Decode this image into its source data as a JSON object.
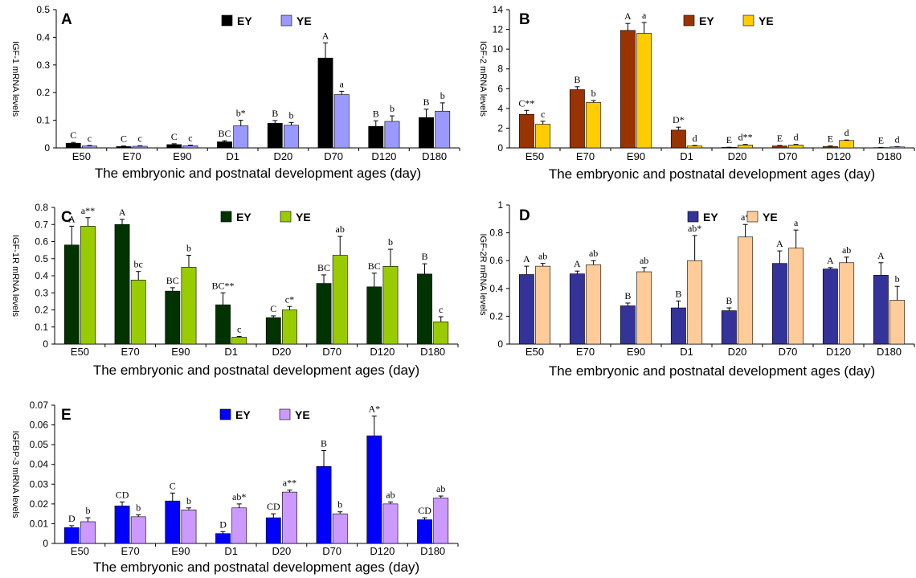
{
  "chart_data": [
    {
      "type": "bar",
      "panel": "A",
      "ylabel": "IGF-1 mRNA levels",
      "xlabel": "The embryonic and postnatal development ages (day)",
      "categories": [
        "E50",
        "E70",
        "E90",
        "D1",
        "D20",
        "D70",
        "D120",
        "D180"
      ],
      "ylim": [
        0,
        0.5
      ],
      "yticks": [
        "0",
        "0.1",
        "0.2",
        "0.3",
        "0.4",
        "0.5"
      ],
      "series": [
        {
          "name": "EY",
          "color": "#000000",
          "values": [
            0.017,
            0.005,
            0.012,
            0.022,
            0.089,
            0.325,
            0.078,
            0.11
          ],
          "errors": [
            0.003,
            0.002,
            0.003,
            0.004,
            0.01,
            0.055,
            0.02,
            0.03
          ],
          "labels": [
            "C",
            "C",
            "C",
            "BC",
            "B",
            "A",
            "B",
            "B"
          ]
        },
        {
          "name": "YE",
          "color": "#9999ff",
          "values": [
            0.007,
            0.006,
            0.008,
            0.08,
            0.082,
            0.193,
            0.096,
            0.133
          ],
          "errors": [
            0.002,
            0.002,
            0.002,
            0.02,
            0.01,
            0.012,
            0.02,
            0.03
          ],
          "labels": [
            "c",
            "c",
            "c",
            "b*",
            "b",
            "a",
            "b",
            "b"
          ]
        }
      ]
    },
    {
      "type": "bar",
      "panel": "B",
      "ylabel": "IGF-2 mRNA levels",
      "xlabel": "The embryonic and postnatal development ages (day)",
      "categories": [
        "E50",
        "E70",
        "E90",
        "D1",
        "D20",
        "D70",
        "D120",
        "D180"
      ],
      "ylim": [
        0,
        14
      ],
      "yticks": [
        "0",
        "2",
        "4",
        "6",
        "8",
        "10",
        "12",
        "14"
      ],
      "series": [
        {
          "name": "EY",
          "color": "#993300",
          "values": [
            3.4,
            5.9,
            11.9,
            1.8,
            0.05,
            0.2,
            0.15,
            0.03
          ],
          "errors": [
            0.4,
            0.3,
            0.7,
            0.3,
            0.02,
            0.05,
            0.05,
            0.02
          ],
          "labels": [
            "C**",
            "B",
            "A",
            "D*",
            "E",
            "E",
            "E",
            "E"
          ]
        },
        {
          "name": "YE",
          "color": "#ffcc00",
          "values": [
            2.4,
            4.6,
            11.6,
            0.2,
            0.3,
            0.3,
            0.75,
            0.1
          ],
          "errors": [
            0.3,
            0.2,
            1.1,
            0.05,
            0.05,
            0.05,
            0.05,
            0.02
          ],
          "labels": [
            "c",
            "b",
            "a",
            "d",
            "d**",
            "d",
            "d",
            "d"
          ]
        }
      ]
    },
    {
      "type": "bar",
      "panel": "C",
      "ylabel": "IGF-1R mRNA levels",
      "xlabel": "The embryonic and postnatal development ages (day)",
      "categories": [
        "E50",
        "E70",
        "E90",
        "D1",
        "D20",
        "D70",
        "D120",
        "D180"
      ],
      "ylim": [
        0,
        0.8
      ],
      "yticks": [
        "0",
        "0.1",
        "0.2",
        "0.3",
        "0.4",
        "0.5",
        "0.6",
        "0.7",
        "0.8"
      ],
      "series": [
        {
          "name": "EY",
          "color": "#003300",
          "values": [
            0.58,
            0.7,
            0.31,
            0.23,
            0.155,
            0.355,
            0.335,
            0.41
          ],
          "errors": [
            0.11,
            0.03,
            0.02,
            0.07,
            0.01,
            0.05,
            0.08,
            0.06
          ],
          "labels": [
            "A",
            "A",
            "BC",
            "BC**",
            "C",
            "BC",
            "BC",
            "B"
          ]
        },
        {
          "name": "YE",
          "color": "#99cc00",
          "values": [
            0.69,
            0.375,
            0.45,
            0.04,
            0.2,
            0.52,
            0.455,
            0.13
          ],
          "errors": [
            0.05,
            0.05,
            0.07,
            0.005,
            0.02,
            0.11,
            0.1,
            0.03
          ],
          "labels": [
            "a**",
            "bc",
            "b",
            "c",
            "c*",
            "ab",
            "b",
            "c"
          ]
        }
      ]
    },
    {
      "type": "bar",
      "panel": "D",
      "ylabel": "IGF-2R mRNA levels",
      "xlabel": "The embryonic and postnatal development ages (day)",
      "categories": [
        "E50",
        "E70",
        "E90",
        "D1",
        "D20",
        "D70",
        "D120",
        "D180"
      ],
      "ylim": [
        0,
        1
      ],
      "yticks": [
        "0",
        "0.2",
        "0.4",
        "0.6",
        "0.8",
        "1"
      ],
      "series": [
        {
          "name": "EY",
          "color": "#333399",
          "values": [
            0.5,
            0.505,
            0.275,
            0.26,
            0.24,
            0.58,
            0.54,
            0.495
          ],
          "errors": [
            0.06,
            0.02,
            0.02,
            0.05,
            0.02,
            0.09,
            0.01,
            0.09
          ],
          "labels": [
            "A",
            "A",
            "B",
            "B",
            "B",
            "A",
            "A",
            "A"
          ]
        },
        {
          "name": "YE",
          "color": "#ffcc99",
          "values": [
            0.56,
            0.57,
            0.52,
            0.6,
            0.77,
            0.69,
            0.585,
            0.315
          ],
          "errors": [
            0.02,
            0.03,
            0.03,
            0.18,
            0.09,
            0.13,
            0.04,
            0.1
          ],
          "labels": [
            "ab",
            "ab",
            "ab",
            "ab*",
            "a*",
            "a",
            "ab",
            "b"
          ]
        }
      ]
    },
    {
      "type": "bar",
      "panel": "E",
      "ylabel": "IGFBP-3 mRNA levels",
      "xlabel": "The embryonic and postnatal development ages (day)",
      "categories": [
        "E50",
        "E70",
        "E90",
        "D1",
        "D20",
        "D70",
        "D120",
        "D180"
      ],
      "ylim": [
        0,
        0.07
      ],
      "yticks": [
        "0",
        "0.01",
        "0.02",
        "0.03",
        "0.04",
        "0.05",
        "0.06",
        "0.07"
      ],
      "series": [
        {
          "name": "EY",
          "color": "#0000ff",
          "values": [
            0.008,
            0.019,
            0.0215,
            0.005,
            0.013,
            0.039,
            0.0545,
            0.012
          ],
          "errors": [
            0.001,
            0.002,
            0.004,
            0.001,
            0.002,
            0.008,
            0.01,
            0.001
          ],
          "labels": [
            "D",
            "CD",
            "C",
            "D",
            "CD",
            "B",
            "A*",
            "CD"
          ]
        },
        {
          "name": "YE",
          "color": "#cc99ff",
          "values": [
            0.011,
            0.0135,
            0.017,
            0.018,
            0.026,
            0.015,
            0.02,
            0.023
          ],
          "errors": [
            0.002,
            0.001,
            0.001,
            0.002,
            0.001,
            0.001,
            0.001,
            0.001
          ],
          "labels": [
            "b",
            "b",
            "b",
            "ab*",
            "a**",
            "b",
            "ab",
            "ab"
          ]
        }
      ]
    }
  ]
}
